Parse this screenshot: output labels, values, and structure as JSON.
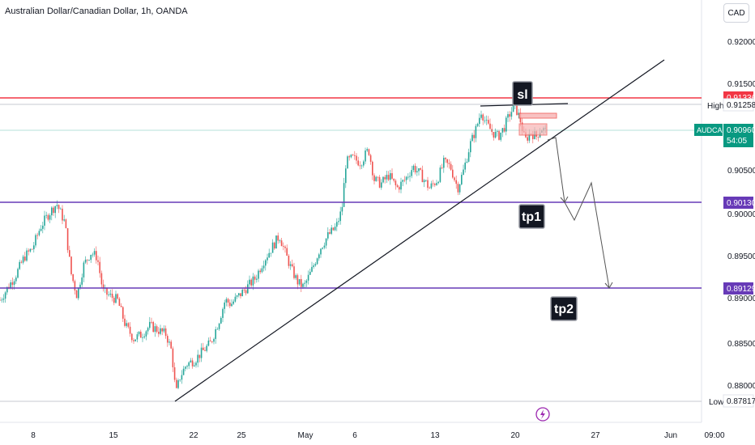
{
  "header": {
    "title": "Australian Dollar/Canadian Dollar, 1h, OANDA",
    "currency_button": "CAD"
  },
  "colors": {
    "up": "#26a69a",
    "down": "#ef5350",
    "sl_line": "#f23645",
    "tp_line": "#673ab7",
    "current_line": "#089981",
    "trend": "#131722"
  },
  "price_axis": {
    "ticks": [
      "0.92000",
      "0.91500",
      "0.90500",
      "0.90000",
      "0.89500",
      "0.89000",
      "0.88500",
      "0.88000"
    ],
    "high_label": "High",
    "high_value": "0.91258",
    "low_label": "Low",
    "low_value": "0.87817",
    "sl_value": "0.91336",
    "symbol_tag": "AUDCAD",
    "current_value": "0.90960",
    "countdown": "54:05",
    "tp1_value": "0.90130",
    "tp2_value": "0.89129"
  },
  "time_axis": {
    "ticks": [
      "8",
      "15",
      "22",
      "25",
      "May",
      "6",
      "13",
      "20",
      "27",
      "Jun",
      "09:00"
    ]
  },
  "annotations": {
    "sl": "sl",
    "tp1": "tp1",
    "tp2": "tp2"
  },
  "chart_data": {
    "type": "candlestick",
    "symbol": "AUDCAD",
    "interval": "1h",
    "ylim": [
      0.877,
      0.9245
    ],
    "levels": {
      "stop_loss": 0.91336,
      "take_profit_1": 0.9013,
      "take_profit_2": 0.89129,
      "current": 0.9096,
      "high": 0.91258,
      "low": 0.87817
    },
    "x_ticks": [
      "8",
      "15",
      "22",
      "25",
      "May",
      "6",
      "13",
      "20",
      "27",
      "Jun",
      "09:00"
    ],
    "y_ticks": [
      0.92,
      0.915,
      0.905,
      0.9,
      0.895,
      0.89,
      0.885,
      0.88
    ],
    "price_path": [
      [
        0,
        0.89
      ],
      [
        10,
        0.8915
      ],
      [
        20,
        0.893
      ],
      [
        30,
        0.895
      ],
      [
        40,
        0.896
      ],
      [
        50,
        0.8985
      ],
      [
        60,
        0.9
      ],
      [
        70,
        0.9012
      ],
      [
        80,
        0.899
      ],
      [
        88,
        0.893
      ],
      [
        95,
        0.8905
      ],
      [
        103,
        0.894
      ],
      [
        112,
        0.8955
      ],
      [
        120,
        0.895
      ],
      [
        127,
        0.891
      ],
      [
        135,
        0.8905
      ],
      [
        145,
        0.89
      ],
      [
        155,
        0.887
      ],
      [
        165,
        0.8855
      ],
      [
        175,
        0.886
      ],
      [
        185,
        0.887
      ],
      [
        195,
        0.8865
      ],
      [
        205,
        0.886
      ],
      [
        212,
        0.884
      ],
      [
        217,
        0.879
      ],
      [
        222,
        0.881
      ],
      [
        230,
        0.8825
      ],
      [
        240,
        0.883
      ],
      [
        250,
        0.884
      ],
      [
        260,
        0.885
      ],
      [
        270,
        0.8875
      ],
      [
        278,
        0.89
      ],
      [
        285,
        0.8895
      ],
      [
        295,
        0.8905
      ],
      [
        305,
        0.8915
      ],
      [
        315,
        0.8925
      ],
      [
        325,
        0.8945
      ],
      [
        335,
        0.896
      ],
      [
        345,
        0.8975
      ],
      [
        352,
        0.8955
      ],
      [
        360,
        0.8935
      ],
      [
        368,
        0.892
      ],
      [
        375,
        0.8915
      ],
      [
        385,
        0.8935
      ],
      [
        395,
        0.896
      ],
      [
        405,
        0.8975
      ],
      [
        415,
        0.8985
      ],
      [
        422,
        0.9005
      ],
      [
        427,
        0.906
      ],
      [
        435,
        0.9065
      ],
      [
        445,
        0.906
      ],
      [
        455,
        0.9075
      ],
      [
        462,
        0.904
      ],
      [
        470,
        0.9035
      ],
      [
        480,
        0.9045
      ],
      [
        490,
        0.903
      ],
      [
        500,
        0.904
      ],
      [
        510,
        0.9055
      ],
      [
        520,
        0.9045
      ],
      [
        530,
        0.903
      ],
      [
        540,
        0.904
      ],
      [
        548,
        0.906
      ],
      [
        556,
        0.9055
      ],
      [
        565,
        0.903
      ],
      [
        572,
        0.905
      ],
      [
        580,
        0.908
      ],
      [
        588,
        0.91
      ],
      [
        594,
        0.912
      ],
      [
        600,
        0.9105
      ],
      [
        608,
        0.9095
      ],
      [
        615,
        0.909
      ],
      [
        622,
        0.91
      ],
      [
        630,
        0.9118
      ],
      [
        636,
        0.9125
      ],
      [
        642,
        0.911
      ],
      [
        648,
        0.9085
      ],
      [
        655,
        0.9095
      ],
      [
        662,
        0.909
      ],
      [
        668,
        0.91
      ],
      [
        674,
        0.9096
      ]
    ]
  }
}
